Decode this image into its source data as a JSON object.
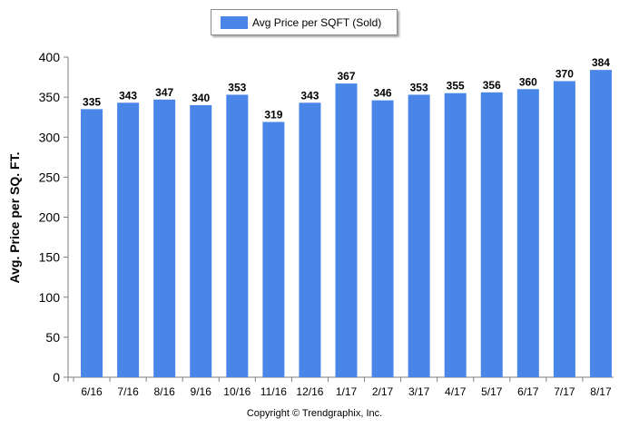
{
  "legend": {
    "label": "Avg Price per SQFT (Sold)"
  },
  "copyright": "Copyright © Trendgraphix, Inc.",
  "colors": {
    "bar": "#4a86e8",
    "axis": "#7f7f7f"
  },
  "chart_data": {
    "type": "bar",
    "categories": [
      "6/16",
      "7/16",
      "8/16",
      "9/16",
      "10/16",
      "11/16",
      "12/16",
      "1/17",
      "2/17",
      "3/17",
      "4/17",
      "5/17",
      "6/17",
      "7/17",
      "8/17"
    ],
    "series": [
      {
        "name": "Avg Price per SQFT (Sold)",
        "values": [
          335,
          343,
          347,
          340,
          353,
          319,
          343,
          367,
          346,
          353,
          355,
          356,
          360,
          370,
          384
        ]
      }
    ],
    "ylabel": "Avg. Price per SQ. FT.",
    "xlabel": "",
    "ylim": [
      0,
      400
    ],
    "yticks": [
      0,
      50,
      100,
      150,
      200,
      250,
      300,
      350,
      400
    ],
    "grid": false,
    "legend_position": "top"
  }
}
